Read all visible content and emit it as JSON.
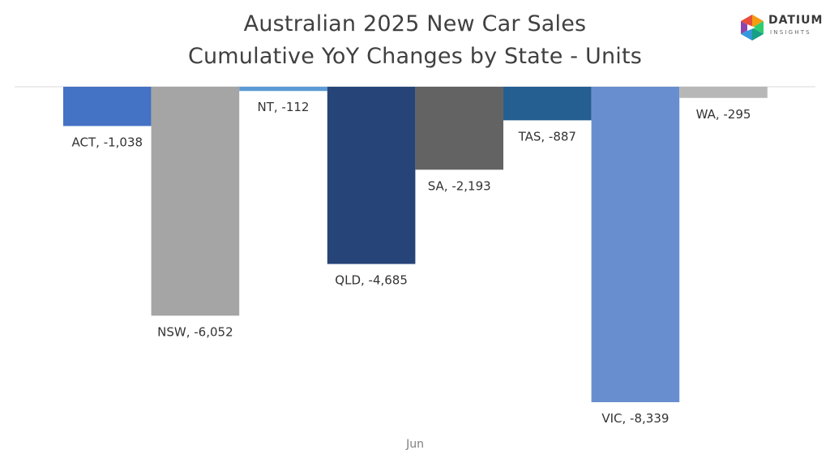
{
  "logo": {
    "name": "DATIUM",
    "tagline": "INSIGHTS",
    "colors": [
      "#e84e3c",
      "#f39c12",
      "#2ecc71",
      "#3498db",
      "#8e44ad"
    ]
  },
  "chart_data": {
    "type": "bar",
    "title": [
      "Australian 2025 New Car Sales",
      "Cumulative YoY Changes by State - Units"
    ],
    "x_category": "Jun",
    "ylim": [
      -8339,
      0
    ],
    "grid": false,
    "legend": "none",
    "series": [
      {
        "name": "ACT",
        "value": -1038,
        "label": "ACT, -1,038",
        "color": "#4472c4"
      },
      {
        "name": "NSW",
        "value": -6052,
        "label": "NSW, -6,052",
        "color": "#a5a5a5"
      },
      {
        "name": "NT",
        "value": -112,
        "label": "NT, -112",
        "color": "#5b9bd5"
      },
      {
        "name": "QLD",
        "value": -4685,
        "label": "QLD, -4,685",
        "color": "#264478"
      },
      {
        "name": "SA",
        "value": -2193,
        "label": "SA, -2,193",
        "color": "#636363"
      },
      {
        "name": "TAS",
        "value": -887,
        "label": "TAS, -887",
        "color": "#255e91"
      },
      {
        "name": "VIC",
        "value": -8339,
        "label": "VIC, -8,339",
        "color": "#698ed0"
      },
      {
        "name": "WA",
        "value": -295,
        "label": "WA, -295",
        "color": "#b7b7b7"
      }
    ]
  }
}
